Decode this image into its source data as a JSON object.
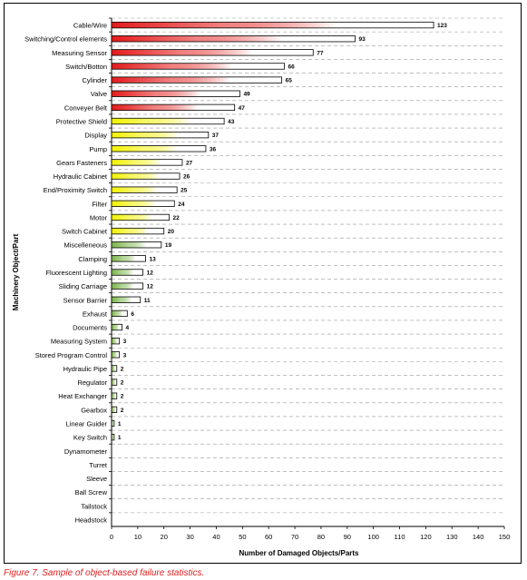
{
  "chart_data": {
    "type": "bar",
    "orientation": "horizontal",
    "ylabel": "Machinery Object/Part",
    "xlabel": "Number of Damaged Objects/Parts",
    "xlim": [
      0,
      150
    ],
    "xticks": [
      0,
      10,
      20,
      30,
      40,
      50,
      60,
      70,
      80,
      90,
      100,
      110,
      120,
      130,
      140,
      150
    ],
    "grid": "horizontal-dashed",
    "categories": [
      "Cable/Wire",
      "Switching/Control elements",
      "Measuring Sensor",
      "Switch/Botton",
      "Cylinder",
      "Valve",
      "Conveyer Belt",
      "Protective Shield",
      "Display",
      "Pump",
      "Gears Fasteners",
      "Hydraulic Cabinet",
      "End/Proximity Switch",
      "Filter",
      "Motor",
      "Switch Cabinet",
      "Miscelleneous",
      "Clamping",
      "Fluorescent Lighting",
      "Sliding Carriage",
      "Sensor Barrier",
      "Exhaust",
      "Documents",
      "Measuring System",
      "Stored Program Control",
      "Hydraulic Pipe",
      "Regulator",
      "Heat Exchanger",
      "Gearbox",
      "Linear Guider",
      "Key Switch",
      "Dynamometer",
      "Turret",
      "Sleeve",
      "Ball Screw",
      "Tailstock",
      "Headstock"
    ],
    "values": [
      123,
      93,
      77,
      66,
      65,
      49,
      47,
      43,
      37,
      36,
      27,
      26,
      25,
      24,
      22,
      20,
      19,
      13,
      12,
      12,
      11,
      6,
      4,
      3,
      3,
      2,
      2,
      2,
      2,
      1,
      1,
      0,
      0,
      0,
      0,
      0,
      0
    ],
    "data_labels": [
      "123",
      "93",
      "77",
      "66",
      "65",
      "49",
      "47",
      "43",
      "37",
      "36",
      "27",
      "26",
      "25",
      "24",
      "22",
      "20",
      "19",
      "13",
      "12",
      "12",
      "11",
      "6",
      "4",
      "3",
      "3",
      "2",
      "2",
      "2",
      "2",
      "1",
      "1",
      "",
      "",
      "",
      "",
      "",
      ""
    ],
    "bar_gradient": [
      "red",
      "red",
      "red",
      "red",
      "red",
      "red",
      "red",
      "yellow",
      "yellow",
      "yellow",
      "yellow",
      "yellow",
      "yellow",
      "yellow",
      "yellow",
      "yellow",
      "green",
      "green",
      "green",
      "green",
      "green",
      "green",
      "green",
      "green",
      "green",
      "green",
      "green",
      "green",
      "green",
      "green",
      "green",
      "green",
      "green",
      "green",
      "green",
      "green",
      "green"
    ],
    "colors": {
      "red": "#e41a1a",
      "yellow": "#f2f200",
      "green": "#7ab548",
      "gridline": "#999999",
      "axis": "#000000"
    }
  },
  "caption": "Figure 7.  Sample of object-based failure statistics."
}
